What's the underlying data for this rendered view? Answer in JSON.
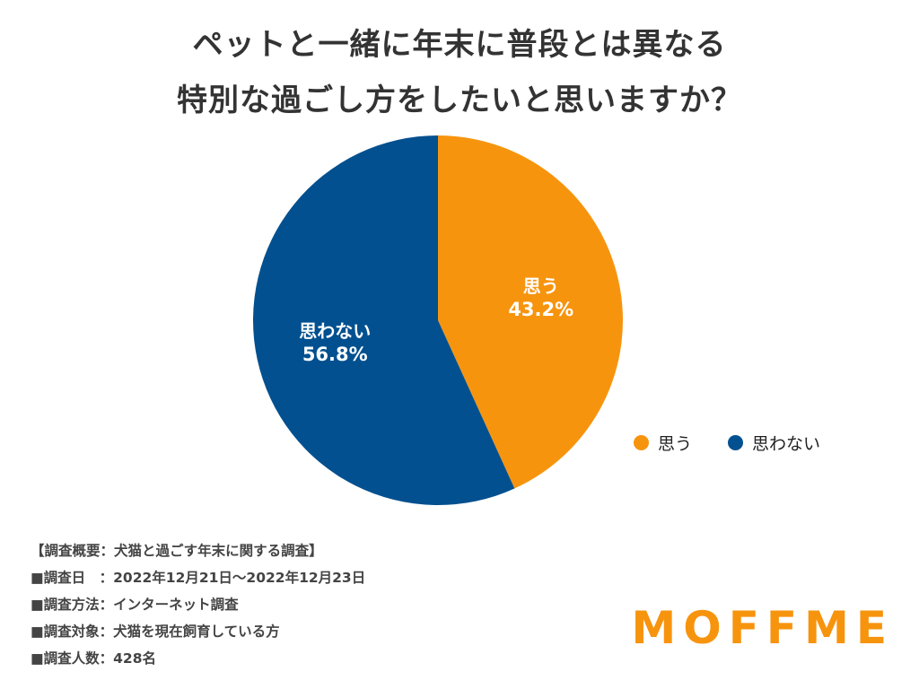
{
  "title": {
    "line1": "ペットと一緒に年末に普段とは異なる",
    "line2": "特別な過ごし方をしたいと思いますか？"
  },
  "chart_data": {
    "type": "pie",
    "slices": [
      {
        "label": "思う",
        "value": 43.2,
        "value_label": "43.2%",
        "color": "#F7940E"
      },
      {
        "label": "思わない",
        "value": 56.8,
        "value_label": "56.8%",
        "color": "#02508F"
      }
    ]
  },
  "survey": {
    "lines": [
      "【調査概要：犬猫と過ごす年末に関する調査】",
      "■調査日　：2022年12月21日〜2022年12月23日",
      "■調査方法：インターネット調査",
      "■調査対象：犬猫を現在飼育している方",
      "■調査人数：428名"
    ]
  },
  "logo": {
    "text": "MOFFME",
    "color": "#F7940E"
  }
}
